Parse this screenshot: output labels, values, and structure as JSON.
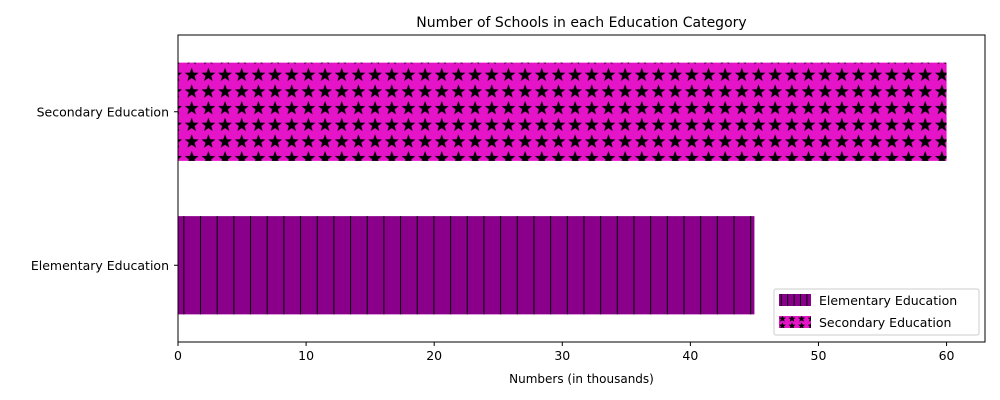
{
  "chart_data": {
    "type": "bar",
    "orientation": "horizontal",
    "title": "Number of Schools in each Education Category",
    "xlabel": "Numbers (in thousands)",
    "ylabel": "",
    "xlim": [
      0,
      63
    ],
    "x_ticks": [
      "0",
      "10",
      "20",
      "30",
      "40",
      "50",
      "60"
    ],
    "grid": false,
    "legend_position": "bottom-right",
    "categories": [
      "Elementary Education",
      "Secondary Education"
    ],
    "values": [
      45,
      60
    ],
    "series": [
      {
        "name": "Elementary Education",
        "value": 45,
        "color": "#8b008b",
        "hatch": "vertical-lines"
      },
      {
        "name": "Secondary Education",
        "value": 60,
        "color": "#e614c8",
        "hatch": "stars"
      }
    ]
  }
}
